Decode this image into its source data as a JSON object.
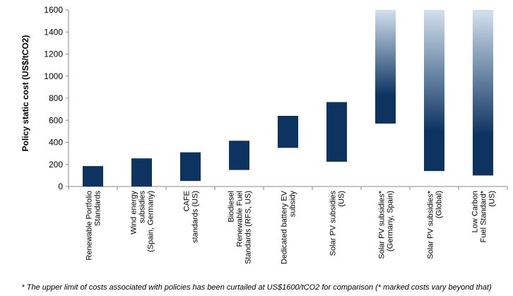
{
  "chart_data": {
    "type": "bar",
    "subtype": "floating-range",
    "ylabel": "Policy static cost (US$/tCO2)",
    "xlabel": "",
    "ylim": [
      0,
      1600
    ],
    "yticks": [
      0,
      200,
      400,
      600,
      800,
      1000,
      1200,
      1400,
      1600
    ],
    "bar_color": "#0d3461",
    "fade_color": "#d3e1ee",
    "categories": [
      {
        "label": [
          "Renewable Portfolio",
          "Standards"
        ],
        "low": 0,
        "high": 185,
        "curtailed": false
      },
      {
        "label": [
          "Wind energy",
          "subsidies",
          "(Spain, Germany)"
        ],
        "low": 0,
        "high": 255,
        "curtailed": false
      },
      {
        "label": [
          "CAFE",
          "standards (US)"
        ],
        "low": 50,
        "high": 310,
        "curtailed": false
      },
      {
        "label": [
          "Biodiesel",
          "Renewable Fuel",
          "Standards (RFS, US)"
        ],
        "low": 150,
        "high": 415,
        "curtailed": false
      },
      {
        "label": [
          "Dedicated battery EV",
          "subsidy"
        ],
        "low": 350,
        "high": 640,
        "curtailed": false
      },
      {
        "label": [
          "Solar PV subsidies",
          "(US)"
        ],
        "low": 225,
        "high": 765,
        "curtailed": false
      },
      {
        "label": [
          "Solar PV subsidies*",
          "(Germany, Spain)"
        ],
        "low": 570,
        "high": 1600,
        "curtailed": true
      },
      {
        "label": [
          "Solar PV subsidies*",
          "(Global)"
        ],
        "low": 140,
        "high": 1600,
        "curtailed": true
      },
      {
        "label": [
          "Low Carbon",
          "Fuel Standard*",
          "(US)"
        ],
        "low": 100,
        "high": 1600,
        "curtailed": true
      }
    ]
  },
  "footnote": "* The upper limit of costs associated with policies has been curtailed at US$1600/tCO2 for comparison (* marked costs vary beyond that)"
}
